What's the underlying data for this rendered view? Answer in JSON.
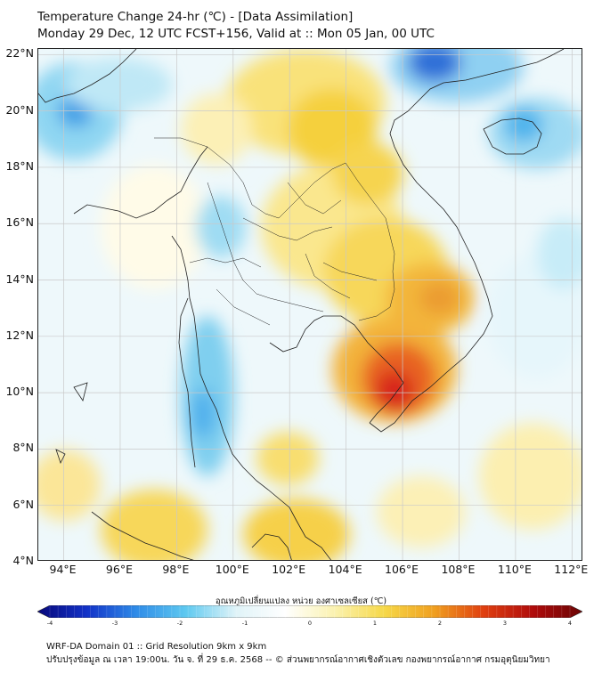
{
  "title": {
    "line1": "Temperature Change 24-hr (℃) - [Data Assimilation]",
    "line2": "Monday 29 Dec, 12 UTC FCST+156, Valid at :: Mon 05 Jan, 00 UTC"
  },
  "map": {
    "lat_labels": [
      "22°N",
      "20°N",
      "18°N",
      "16°N",
      "14°N",
      "12°N",
      "10°N",
      "8°N",
      "6°N",
      "4°N"
    ],
    "lon_labels": [
      "94°E",
      "96°E",
      "98°E",
      "100°E",
      "102°E",
      "104°E",
      "106°E",
      "108°E",
      "110°E",
      "112°E"
    ],
    "lat_range": [
      4,
      22.2
    ],
    "lon_range": [
      93.1,
      112.4
    ]
  },
  "colorbar": {
    "title": "อุณหภูมิเปลี่ยนแปลง หน่วย องศาเซลเซียส (℃)",
    "ticks": [
      "-4",
      "-3",
      "-2",
      "-1",
      "0",
      "1",
      "2",
      "3",
      "4"
    ],
    "range": [
      -4,
      4
    ],
    "colors": [
      "#08087a",
      "#1232c8",
      "#2f8ce8",
      "#5ec9f0",
      "#dff3f8",
      "#ffffff",
      "#fbf2b0",
      "#f6d848",
      "#f0a020",
      "#e04010",
      "#b00c0c",
      "#6a0404"
    ]
  },
  "footer": {
    "line1": "WRF-DA Domain 01 :: Grid Resolution 9km x 9km",
    "line2": "ปรับปรุงข้อมูล ณ เวลา 19:00น. วัน จ. ที่ 29 ธ.ค. 2568 -- © ส่วนพยากรณ์อากาศเชิงตัวเลข กองพยากรณ์อากาศ กรมอุตุนิยมวิทยา"
  }
}
